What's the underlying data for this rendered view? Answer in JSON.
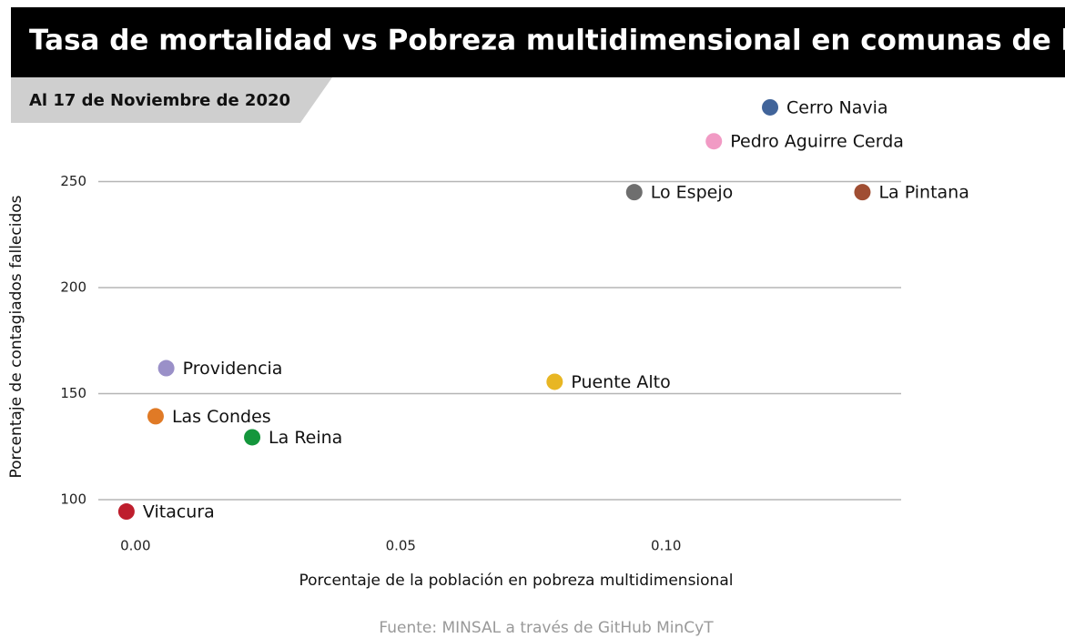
{
  "chart_data": {
    "type": "scatter",
    "title": "Tasa de mortalidad vs Pobreza multidimensional en comunas de la RM",
    "subtitle": "Al 17 de Noviembre de 2020",
    "x_label": "Porcentaje de la población en pobreza multidimensional",
    "y_label": "Porcentaje de contagiados fallecidos",
    "source": "Fuente: MINSAL a través de GitHub MinCyT",
    "xlim": [
      -0.007,
      0.1443
    ],
    "ylim": [
      82.4,
      292.7
    ],
    "xticks": [
      {
        "value": 0,
        "label": "0.00"
      },
      {
        "value": 0.05,
        "label": "0.05"
      },
      {
        "value": 0.1,
        "label": "0.10"
      }
    ],
    "yticks": [
      100,
      150,
      200,
      250
    ],
    "grid": true,
    "series": [
      {
        "name": "Cerro Navia",
        "color": "#41649a",
        "x": [
          0.1196
        ],
        "values": [
          285
        ]
      },
      {
        "name": "Pedro Aguirre Cerda",
        "color": "#f19ac4",
        "x": [
          0.109
        ],
        "values": [
          269
        ]
      },
      {
        "name": "Lo Espejo",
        "color": "#6e6e6e",
        "x": [
          0.094
        ],
        "values": [
          245
        ]
      },
      {
        "name": "La Pintana",
        "color": "#a04e33",
        "x": [
          0.137
        ],
        "values": [
          245
        ]
      },
      {
        "name": "Providencia",
        "color": "#9a90c8",
        "x": [
          0.0058
        ],
        "values": [
          162
        ]
      },
      {
        "name": "Puente Alto",
        "color": "#e8b623",
        "x": [
          0.079
        ],
        "values": [
          155.6
        ]
      },
      {
        "name": "Las Condes",
        "color": "#e07a26",
        "x": [
          0.0038
        ],
        "values": [
          139.3
        ]
      },
      {
        "name": "La Reina",
        "color": "#14963c",
        "x": [
          0.022
        ],
        "values": [
          129.4
        ]
      },
      {
        "name": "Vitacura",
        "color": "#be1e2d",
        "x": [
          -0.0017
        ],
        "values": [
          94.4
        ]
      }
    ]
  }
}
